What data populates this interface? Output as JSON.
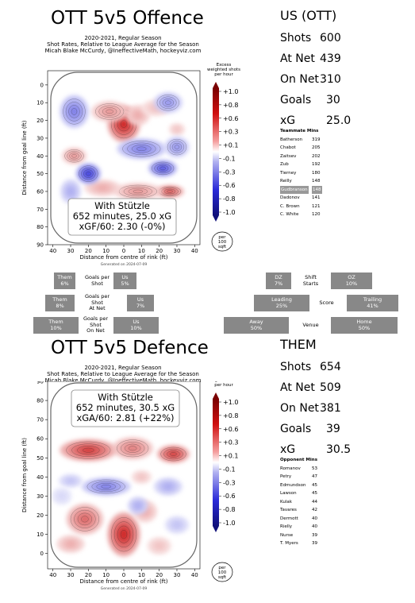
{
  "top": {
    "title": "OTT 5v5 Offence",
    "subtitle_lines": [
      "2020-2021, Regular Season",
      "Shot Rates, Relative to League Average for the Season",
      "Micah Blake McCurdy, @IneffectiveMath, hockeyviz.com"
    ],
    "generated": "Generated on 2024-07-09",
    "annot_lines": [
      "With Stützle",
      "652 minutes, 25.0 xG",
      "xGF/60: 2.30 (-0%)"
    ],
    "legend_title": [
      "Excess",
      "weighted shots",
      "per hour"
    ],
    "per_label": [
      "per",
      "100",
      "sqft"
    ],
    "stats_head": "US (OTT)",
    "stats": [
      {
        "label": "Shots",
        "value": "600"
      },
      {
        "label": "At Net",
        "value": "439"
      },
      {
        "label": "On Net",
        "value": "310"
      },
      {
        "label": "Goals",
        "value": "30"
      },
      {
        "label": "xG",
        "value": "25.0"
      }
    ],
    "mates_head": "Teammate Mins",
    "mates": [
      {
        "name": "Batherson",
        "mins": "319"
      },
      {
        "name": "Chabot",
        "mins": "205"
      },
      {
        "name": "Zaitsev",
        "mins": "202"
      },
      {
        "name": "Zub",
        "mins": "192"
      },
      {
        "name": "Tierney",
        "mins": "180"
      },
      {
        "name": "Reilly",
        "mins": "148"
      },
      {
        "name": "Gudbranson",
        "mins": "148",
        "highlight": true
      },
      {
        "name": "Dadonov",
        "mins": "141"
      },
      {
        "name": "C. Brown",
        "mins": "121"
      },
      {
        "name": "C. White",
        "mins": "120"
      }
    ]
  },
  "bottom": {
    "title": "OTT 5v5 Defence",
    "subtitle_lines": [
      "2020-2021, Regular Season",
      "Shot Rates, Relative to League Average for the Season",
      "Micah Blake McCurdy, @IneffectiveMath, hockeyviz.com"
    ],
    "generated": "Generated on 2024-07-09",
    "annot_lines": [
      "With Stützle",
      "652 minutes, 30.5 xG",
      "xGA/60: 2.81 (+22%)"
    ],
    "legend_title": [
      "Excess",
      "weighted shots",
      "per hour"
    ],
    "per_label": [
      "per",
      "100",
      "sqft"
    ],
    "stats_head": "THEM",
    "stats": [
      {
        "label": "Shots",
        "value": "654"
      },
      {
        "label": "At Net",
        "value": "509"
      },
      {
        "label": "On Net",
        "value": "381"
      },
      {
        "label": "Goals",
        "value": "39"
      },
      {
        "label": "xG",
        "value": "30.5"
      }
    ],
    "mates_head": "Opponent Mins",
    "mates": [
      {
        "name": "Romanov",
        "mins": "53"
      },
      {
        "name": "Petry",
        "mins": "47"
      },
      {
        "name": "Edmundson",
        "mins": "45"
      },
      {
        "name": "Lawson",
        "mins": "45"
      },
      {
        "name": "Kulak",
        "mins": "44"
      },
      {
        "name": "Tavares",
        "mins": "42"
      },
      {
        "name": "Dermott",
        "mins": "40"
      },
      {
        "name": "Rielly",
        "mins": "40"
      },
      {
        "name": "Nurse",
        "mins": "39"
      },
      {
        "name": "T. Myers",
        "mins": "39"
      }
    ]
  },
  "middle": {
    "rows": [
      {
        "them": "Them\n6%",
        "label": "Goals per\nShot",
        "us": "Us\n5%"
      },
      {
        "them": "Them\n8%",
        "label": "Goals per\nShot\nAt Net",
        "us": "Us\n7%"
      },
      {
        "them": "Them\n10%",
        "label": "Goals per\nShot\nOn Net",
        "us": "Us\n10%"
      }
    ],
    "right_rows": [
      {
        "left": "DZ\n7%",
        "label": "Shift\nStarts",
        "right": "OZ\n10%"
      },
      {
        "left": "Leading\n25%",
        "label": "Score",
        "right": "Trailing\n41%"
      },
      {
        "left": "Away\n50%",
        "label": "Venue",
        "right": "Home\n50%"
      }
    ]
  },
  "chart_data": [
    {
      "type": "heatmap",
      "title": "OTT 5v5 Offence",
      "xlabel": "Distance from centre of rink (ft)",
      "ylabel": "Distance from goal line (ft)",
      "xlim": [
        -43,
        43
      ],
      "ylim": [
        -8,
        90
      ],
      "y_inverted": true,
      "x_ticks": [
        "40",
        "30",
        "20",
        "10",
        "0",
        "10",
        "20",
        "30",
        "40"
      ],
      "y_ticks": [
        0,
        10,
        20,
        30,
        40,
        50,
        60,
        70,
        80,
        90
      ],
      "colorbar": {
        "ticks": [
          "+1.0",
          "+0.8",
          "+0.6",
          "+0.3",
          "+0.1",
          "-0.1",
          "-0.3",
          "-0.6",
          "-0.8",
          "-1.0"
        ],
        "high_color": "#cc0000",
        "low_color": "#1a1ad0"
      },
      "blobs": [
        {
          "x": 0,
          "y": 22,
          "value": 1.0,
          "rx": 8,
          "ry": 9
        },
        {
          "x": -8,
          "y": 15,
          "value": 0.5,
          "rx": 9,
          "ry": 5
        },
        {
          "x": 8,
          "y": 17,
          "value": 0.4,
          "rx": 6,
          "ry": 5
        },
        {
          "x": 26,
          "y": 60,
          "value": 0.8,
          "rx": 7,
          "ry": 3
        },
        {
          "x": 8,
          "y": 60,
          "value": 0.5,
          "rx": 12,
          "ry": 4
        },
        {
          "x": -12,
          "y": 58,
          "value": 0.4,
          "rx": 9,
          "ry": 4
        },
        {
          "x": -28,
          "y": 40,
          "value": 0.5,
          "rx": 6,
          "ry": 4
        },
        {
          "x": 18,
          "y": 13,
          "value": 0.3,
          "rx": 7,
          "ry": 4
        },
        {
          "x": 30,
          "y": 25,
          "value": 0.3,
          "rx": 4,
          "ry": 3
        },
        {
          "x": 10,
          "y": 70,
          "value": 0.2,
          "rx": 10,
          "ry": 4
        },
        {
          "x": -28,
          "y": 15,
          "value": -0.6,
          "rx": 7,
          "ry": 8
        },
        {
          "x": -20,
          "y": 50,
          "value": -0.9,
          "rx": 6,
          "ry": 5
        },
        {
          "x": 22,
          "y": 47,
          "value": -0.8,
          "rx": 7,
          "ry": 4
        },
        {
          "x": 25,
          "y": 10,
          "value": -0.5,
          "rx": 7,
          "ry": 5
        },
        {
          "x": 10,
          "y": 36,
          "value": -0.6,
          "rx": 12,
          "ry": 5
        },
        {
          "x": -15,
          "y": 72,
          "value": -0.3,
          "rx": 10,
          "ry": 5
        },
        {
          "x": 30,
          "y": 35,
          "value": -0.5,
          "rx": 6,
          "ry": 5
        },
        {
          "x": -30,
          "y": 60,
          "value": -0.4,
          "rx": 5,
          "ry": 6
        }
      ]
    },
    {
      "type": "heatmap",
      "title": "OTT 5v5 Defence",
      "xlabel": "Distance from centre of rink (ft)",
      "ylabel": "Distance from goal line (ft)",
      "xlim": [
        -43,
        43
      ],
      "ylim": [
        -8,
        90
      ],
      "y_inverted": false,
      "x_ticks": [
        "40",
        "30",
        "20",
        "10",
        "0",
        "10",
        "20",
        "30",
        "40"
      ],
      "y_ticks": [
        0,
        10,
        20,
        30,
        40,
        50,
        60,
        70,
        80,
        90
      ],
      "colorbar": {
        "ticks": [
          "+1.0",
          "+0.8",
          "+0.6",
          "+0.3",
          "+0.1",
          "-0.1",
          "-0.3",
          "-0.6",
          "-0.8",
          "-1.0"
        ],
        "high_color": "#cc0000",
        "low_color": "#1a1ad0"
      },
      "blobs": [
        {
          "x": -20,
          "y": 54,
          "value": 0.9,
          "rx": 14,
          "ry": 5
        },
        {
          "x": 5,
          "y": 55,
          "value": 0.6,
          "rx": 10,
          "ry": 5
        },
        {
          "x": 28,
          "y": 52,
          "value": 0.9,
          "rx": 8,
          "ry": 4
        },
        {
          "x": 0,
          "y": 10,
          "value": 1.0,
          "rx": 8,
          "ry": 10
        },
        {
          "x": -22,
          "y": 18,
          "value": 0.7,
          "rx": 9,
          "ry": 7
        },
        {
          "x": 12,
          "y": 22,
          "value": 0.4,
          "rx": 6,
          "ry": 5
        },
        {
          "x": -30,
          "y": 5,
          "value": 0.4,
          "rx": 7,
          "ry": 4
        },
        {
          "x": 20,
          "y": 4,
          "value": 0.3,
          "rx": 6,
          "ry": 4
        },
        {
          "x": 10,
          "y": 40,
          "value": 0.3,
          "rx": 5,
          "ry": 3
        },
        {
          "x": -10,
          "y": 35,
          "value": -0.6,
          "rx": 12,
          "ry": 4
        },
        {
          "x": 25,
          "y": 35,
          "value": -0.4,
          "rx": 7,
          "ry": 4
        },
        {
          "x": -30,
          "y": 38,
          "value": -0.3,
          "rx": 6,
          "ry": 3
        },
        {
          "x": 8,
          "y": 25,
          "value": -0.4,
          "rx": 5,
          "ry": 4
        },
        {
          "x": 30,
          "y": 15,
          "value": -0.3,
          "rx": 6,
          "ry": 4
        },
        {
          "x": -35,
          "y": 30,
          "value": -0.2,
          "rx": 5,
          "ry": 4
        }
      ]
    }
  ]
}
